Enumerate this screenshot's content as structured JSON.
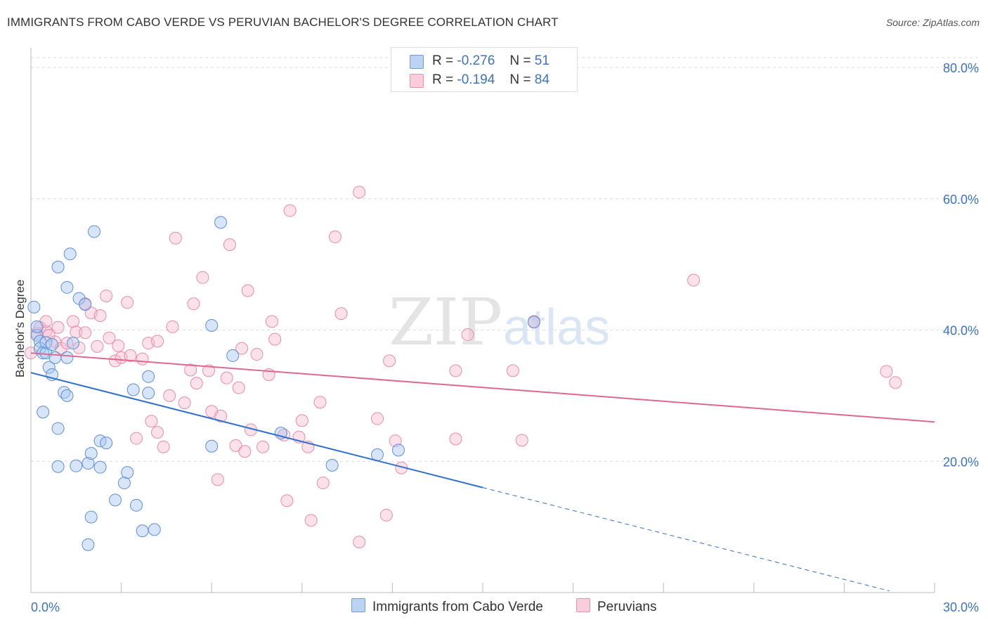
{
  "title": "IMMIGRANTS FROM CABO VERDE VS PERUVIAN BACHELOR'S DEGREE CORRELATION CHART",
  "source": "Source: ZipAtlas.com",
  "watermark": {
    "zip": "ZIP",
    "atlas": "atlas"
  },
  "legend": {
    "rows": [
      {
        "r_label": "R =",
        "r_value": "-0.276",
        "n_label": "N =",
        "n_value": "51",
        "color": "#a9c6f0",
        "stroke": "#6e9ee0"
      },
      {
        "r_label": "R =",
        "r_value": "-0.194",
        "n_label": "N =",
        "n_value": "84",
        "color": "#f7bdd0",
        "stroke": "#ee8fb0"
      }
    ]
  },
  "bottom_legend": {
    "series1": "Immigrants from Cabo Verde",
    "series2": "Peruvians"
  },
  "chart_data": {
    "type": "scatter",
    "ylabel": "Bachelor's Degree",
    "xlim": [
      0,
      30
    ],
    "ylim": [
      0,
      83
    ],
    "y_ticks": [
      {
        "value": 20,
        "label": "20.0%"
      },
      {
        "value": 40,
        "label": "40.0%"
      },
      {
        "value": 60,
        "label": "60.0%"
      },
      {
        "value": 80,
        "label": "80.0%"
      }
    ],
    "x_tick_labels": [
      {
        "value": 0,
        "label": "0.0%"
      },
      {
        "value": 30,
        "label": "30.0%"
      }
    ],
    "x_minor_ticks": [
      3,
      6,
      9,
      12,
      15,
      18,
      21,
      24,
      27,
      30
    ],
    "grid": true,
    "legend_position": "top-center",
    "series": [
      {
        "name": "Immigrants from Cabo Verde",
        "color": "#a9c6f0",
        "stroke": "#5d8fd8",
        "trend": {
          "x0": 0,
          "y0": 33.5,
          "x1": 15,
          "y1": 16,
          "dash_to_x": 28.5,
          "color": "#2f6fcf"
        },
        "points": [
          [
            0.1,
            43.5
          ],
          [
            0.2,
            39.2
          ],
          [
            0.2,
            40.5
          ],
          [
            0.3,
            38.3
          ],
          [
            0.3,
            37.2
          ],
          [
            0.4,
            36.5
          ],
          [
            0.4,
            27.5
          ],
          [
            0.5,
            36.5
          ],
          [
            0.5,
            38.1
          ],
          [
            0.6,
            34.3
          ],
          [
            0.7,
            33.2
          ],
          [
            0.7,
            37.8
          ],
          [
            0.8,
            35.8
          ],
          [
            0.9,
            49.6
          ],
          [
            0.9,
            25.0
          ],
          [
            0.9,
            19.2
          ],
          [
            1.1,
            30.5
          ],
          [
            1.2,
            30.0
          ],
          [
            1.2,
            35.8
          ],
          [
            1.2,
            46.5
          ],
          [
            1.3,
            51.6
          ],
          [
            1.4,
            38.0
          ],
          [
            1.5,
            19.3
          ],
          [
            1.6,
            44.8
          ],
          [
            1.8,
            43.9
          ],
          [
            1.9,
            7.3
          ],
          [
            1.9,
            19.7
          ],
          [
            2.0,
            21.2
          ],
          [
            2.0,
            11.5
          ],
          [
            2.1,
            55.0
          ],
          [
            2.3,
            19.1
          ],
          [
            2.3,
            23.1
          ],
          [
            2.5,
            22.8
          ],
          [
            2.8,
            14.1
          ],
          [
            3.1,
            16.7
          ],
          [
            3.2,
            18.3
          ],
          [
            3.4,
            30.9
          ],
          [
            3.5,
            13.3
          ],
          [
            3.7,
            9.4
          ],
          [
            3.9,
            32.9
          ],
          [
            3.9,
            30.4
          ],
          [
            4.1,
            9.6
          ],
          [
            6.0,
            22.3
          ],
          [
            6.0,
            40.7
          ],
          [
            6.3,
            56.4
          ],
          [
            6.7,
            36.1
          ],
          [
            8.3,
            24.3
          ],
          [
            10.0,
            19.4
          ],
          [
            11.5,
            21.0
          ],
          [
            12.2,
            21.7
          ],
          [
            16.7,
            41.2
          ]
        ]
      },
      {
        "name": "Peruvians",
        "color": "#f7bdd0",
        "stroke": "#ec8aab",
        "trend": {
          "x0": 0,
          "y0": 36.5,
          "x1": 30,
          "y1": 26.0,
          "color": "#e06890"
        },
        "points": [
          [
            0.0,
            36.5
          ],
          [
            0.2,
            39.5
          ],
          [
            0.3,
            40.4
          ],
          [
            0.5,
            39.8
          ],
          [
            0.5,
            41.3
          ],
          [
            0.6,
            39.2
          ],
          [
            0.8,
            38.2
          ],
          [
            0.9,
            40.4
          ],
          [
            1.0,
            37.2
          ],
          [
            1.2,
            38.0
          ],
          [
            1.4,
            41.3
          ],
          [
            1.5,
            39.7
          ],
          [
            1.6,
            37.3
          ],
          [
            1.8,
            44.0
          ],
          [
            1.8,
            39.6
          ],
          [
            2.0,
            42.6
          ],
          [
            2.2,
            37.5
          ],
          [
            2.3,
            42.2
          ],
          [
            2.5,
            45.2
          ],
          [
            2.6,
            38.8
          ],
          [
            2.8,
            35.3
          ],
          [
            2.9,
            37.6
          ],
          [
            3.0,
            35.8
          ],
          [
            3.2,
            44.2
          ],
          [
            3.3,
            36.1
          ],
          [
            3.5,
            23.5
          ],
          [
            3.7,
            35.6
          ],
          [
            3.9,
            38.0
          ],
          [
            4.0,
            26.1
          ],
          [
            4.2,
            38.3
          ],
          [
            4.2,
            24.4
          ],
          [
            4.4,
            22.2
          ],
          [
            4.6,
            30.0
          ],
          [
            4.7,
            40.5
          ],
          [
            4.8,
            54.0
          ],
          [
            5.1,
            28.9
          ],
          [
            5.3,
            33.9
          ],
          [
            5.4,
            44.0
          ],
          [
            5.5,
            31.9
          ],
          [
            5.7,
            48.0
          ],
          [
            5.9,
            33.8
          ],
          [
            6.0,
            27.6
          ],
          [
            6.2,
            17.2
          ],
          [
            6.3,
            26.9
          ],
          [
            6.5,
            32.7
          ],
          [
            6.6,
            53.0
          ],
          [
            6.8,
            22.4
          ],
          [
            6.9,
            31.2
          ],
          [
            7.0,
            37.2
          ],
          [
            7.1,
            21.5
          ],
          [
            7.2,
            46.0
          ],
          [
            7.3,
            24.8
          ],
          [
            7.5,
            36.3
          ],
          [
            7.7,
            22.2
          ],
          [
            7.9,
            33.2
          ],
          [
            8.0,
            41.3
          ],
          [
            8.1,
            38.6
          ],
          [
            8.4,
            24.0
          ],
          [
            8.5,
            14.0
          ],
          [
            8.6,
            58.2
          ],
          [
            8.9,
            23.7
          ],
          [
            9.0,
            26.2
          ],
          [
            9.2,
            22.2
          ],
          [
            9.3,
            11.0
          ],
          [
            9.6,
            29.0
          ],
          [
            9.7,
            16.7
          ],
          [
            10.1,
            54.2
          ],
          [
            10.3,
            42.5
          ],
          [
            10.9,
            61.0
          ],
          [
            10.9,
            7.7
          ],
          [
            11.5,
            26.5
          ],
          [
            11.8,
            11.8
          ],
          [
            11.9,
            35.3
          ],
          [
            12.1,
            23.1
          ],
          [
            12.3,
            19.0
          ],
          [
            14.1,
            33.8
          ],
          [
            14.1,
            23.4
          ],
          [
            14.5,
            39.3
          ],
          [
            16.0,
            33.8
          ],
          [
            16.3,
            23.2
          ],
          [
            16.7,
            41.3
          ],
          [
            22.0,
            47.6
          ],
          [
            28.4,
            33.7
          ],
          [
            28.7,
            32.0
          ]
        ]
      }
    ]
  }
}
